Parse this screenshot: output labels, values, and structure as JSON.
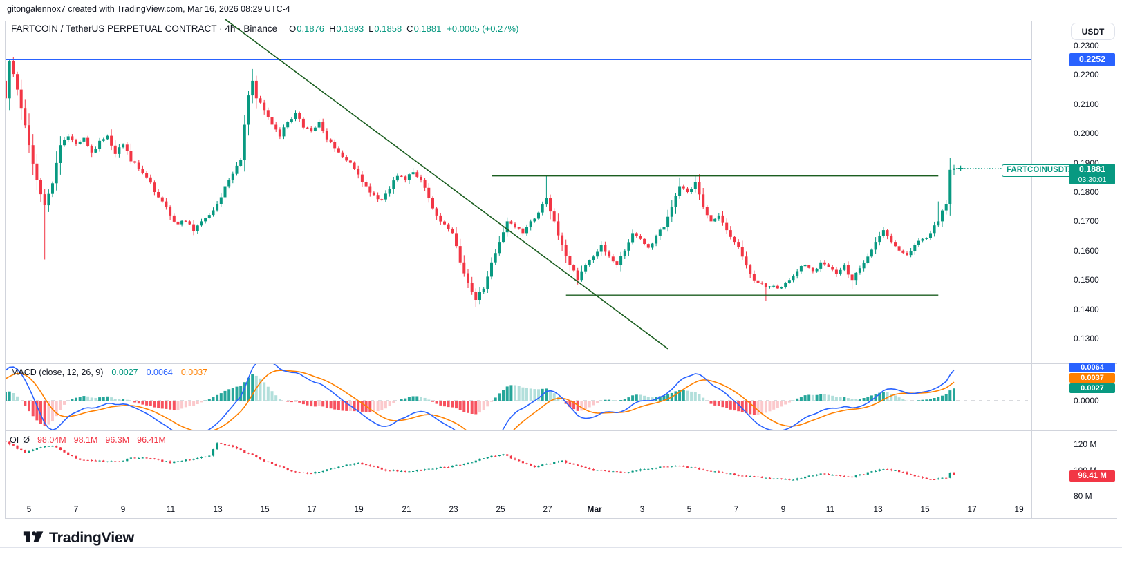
{
  "attribution": "gitongalennox7 created with TradingView.com, Mar 16, 2026 08:29 UTC-4",
  "header": {
    "title": "FARTCOIN / TetherUS PERPETUAL CONTRACT · 4h · Binance",
    "ohlc": {
      "o_label": "O",
      "o": "0.1876",
      "h_label": "H",
      "h": "0.1893",
      "l_label": "L",
      "l": "0.1858",
      "c_label": "C",
      "c": "0.1881",
      "change": "+0.0005 (+0.27%)"
    }
  },
  "indicators": {
    "macd": {
      "label": "MACD (close, 12, 26, 9)",
      "hist": "0.0027",
      "macd": "0.0064",
      "signal": "0.0037"
    },
    "oi": {
      "label": "OI",
      "avg_symbol": "Ø",
      "values": [
        "98.04M",
        "98.1M",
        "96.3M",
        "96.41M"
      ]
    }
  },
  "axis": {
    "currency_button": "USDT",
    "price_ticks": [
      "0.2300",
      "0.2200",
      "0.2100",
      "0.2000",
      "0.1900",
      "0.1800",
      "0.1700",
      "0.1600",
      "0.1500",
      "0.1400",
      "0.1300"
    ],
    "time_ticks": [
      "5",
      "7",
      "9",
      "11",
      "13",
      "15",
      "17",
      "19",
      "21",
      "23",
      "25",
      "27",
      "Mar",
      "3",
      "5",
      "7",
      "9",
      "11",
      "13",
      "15",
      "17",
      "19"
    ],
    "macd_zero_label": "0.0000",
    "oi_ticks": [
      {
        "label": "120 M",
        "value": 120
      },
      {
        "label": "100 M",
        "value": 100
      },
      {
        "label": "80 M",
        "value": 80
      }
    ]
  },
  "badges": {
    "level_price": "0.2252",
    "symbol_label": "FARTCOINUSDT.P",
    "last_price": "0.1881",
    "countdown": "03:30:01",
    "macd_line": "0.0064",
    "macd_signal": "0.0037",
    "macd_hist": "0.0027",
    "oi_value": "96.41 M"
  },
  "footer": {
    "logo_text": "TradingView"
  },
  "colors": {
    "up": "#089981",
    "down": "#f23645",
    "macd_line": "#2962ff",
    "signal_line": "#ff8000",
    "hist_grow_above": "#26a69a",
    "hist_fall_above": "#b2dfdb",
    "hist_fall_below": "#f7525f",
    "hist_grow_below": "#fbc9cc",
    "level_blue": "#2962ff",
    "drawing_green": "#1b5e20",
    "accent_teal": "#089981",
    "accent_red": "#f23645"
  },
  "chart_data": {
    "type": "candlestick",
    "symbol": "FARTCOINUSDT.P",
    "exchange": "Binance",
    "interval": "4h",
    "title": "FARTCOIN / TetherUS PERPETUAL CONTRACT",
    "last": {
      "open": 0.1876,
      "high": 0.1893,
      "low": 0.1858,
      "close": 0.1881,
      "change_abs": 0.0005,
      "change_pct": 0.27
    },
    "price_axis_range": {
      "top": 0.2386,
      "bottom": 0.1213
    },
    "levels": {
      "horizontal_blue": 0.2252,
      "range_high_green": 0.1855,
      "range_low_green": 0.1448
    },
    "trendline": {
      "from": {
        "index": 56,
        "price": 0.239
      },
      "to": {
        "index": 169,
        "price": 0.1265
      }
    },
    "range_high_span": {
      "from_index": 124,
      "to_index": 238
    },
    "range_low_span": {
      "from_index": 143,
      "to_index": 238
    },
    "candle_count": 243,
    "first_open": 0.218,
    "close_waypoints": [
      [
        0,
        0.212
      ],
      [
        1,
        0.2248
      ],
      [
        3,
        0.215
      ],
      [
        4,
        0.2085
      ],
      [
        6,
        0.196
      ],
      [
        8,
        0.184
      ],
      [
        10,
        0.1755
      ],
      [
        12,
        0.183
      ],
      [
        14,
        0.196
      ],
      [
        16,
        0.199
      ],
      [
        18,
        0.1965
      ],
      [
        20,
        0.1985
      ],
      [
        22,
        0.1935
      ],
      [
        24,
        0.1975
      ],
      [
        26,
        0.1992
      ],
      [
        28,
        0.193
      ],
      [
        30,
        0.1962
      ],
      [
        32,
        0.1905
      ],
      [
        34,
        0.188
      ],
      [
        36,
        0.185
      ],
      [
        38,
        0.18
      ],
      [
        40,
        0.1768
      ],
      [
        42,
        0.172
      ],
      [
        44,
        0.169
      ],
      [
        46,
        0.17
      ],
      [
        48,
        0.1668
      ],
      [
        50,
        0.17
      ],
      [
        52,
        0.1722
      ],
      [
        54,
        0.176
      ],
      [
        56,
        0.182
      ],
      [
        58,
        0.1862
      ],
      [
        60,
        0.191
      ],
      [
        61,
        0.203
      ],
      [
        62,
        0.213
      ],
      [
        63,
        0.218
      ],
      [
        64,
        0.212
      ],
      [
        66,
        0.208
      ],
      [
        68,
        0.203
      ],
      [
        70,
        0.199
      ],
      [
        72,
        0.204
      ],
      [
        74,
        0.207
      ],
      [
        76,
        0.202
      ],
      [
        78,
        0.201
      ],
      [
        80,
        0.204
      ],
      [
        82,
        0.198
      ],
      [
        84,
        0.195
      ],
      [
        86,
        0.192
      ],
      [
        88,
        0.19
      ],
      [
        90,
        0.186
      ],
      [
        92,
        0.182
      ],
      [
        94,
        0.179
      ],
      [
        96,
        0.1775
      ],
      [
        98,
        0.181
      ],
      [
        100,
        0.1855
      ],
      [
        102,
        0.184
      ],
      [
        104,
        0.1868
      ],
      [
        106,
        0.184
      ],
      [
        108,
        0.178
      ],
      [
        110,
        0.172
      ],
      [
        112,
        0.169
      ],
      [
        114,
        0.166
      ],
      [
        116,
        0.156
      ],
      [
        118,
        0.149
      ],
      [
        120,
        0.1432
      ],
      [
        122,
        0.147
      ],
      [
        124,
        0.156
      ],
      [
        126,
        0.163
      ],
      [
        128,
        0.17
      ],
      [
        130,
        0.168
      ],
      [
        132,
        0.166
      ],
      [
        134,
        0.17
      ],
      [
        136,
        0.173
      ],
      [
        138,
        0.178
      ],
      [
        140,
        0.17
      ],
      [
        142,
        0.162
      ],
      [
        144,
        0.155
      ],
      [
        146,
        0.15
      ],
      [
        148,
        0.155
      ],
      [
        150,
        0.158
      ],
      [
        152,
        0.162
      ],
      [
        154,
        0.158
      ],
      [
        156,
        0.155
      ],
      [
        158,
        0.16
      ],
      [
        160,
        0.166
      ],
      [
        162,
        0.164
      ],
      [
        164,
        0.161
      ],
      [
        166,
        0.165
      ],
      [
        168,
        0.168
      ],
      [
        170,
        0.175
      ],
      [
        172,
        0.182
      ],
      [
        174,
        0.18
      ],
      [
        176,
        0.1835
      ],
      [
        178,
        0.175
      ],
      [
        180,
        0.17
      ],
      [
        182,
        0.172
      ],
      [
        184,
        0.167
      ],
      [
        186,
        0.163
      ],
      [
        188,
        0.158
      ],
      [
        190,
        0.152
      ],
      [
        192,
        0.149
      ],
      [
        194,
        0.1475
      ],
      [
        196,
        0.148
      ],
      [
        198,
        0.1475
      ],
      [
        200,
        0.15
      ],
      [
        202,
        0.153
      ],
      [
        204,
        0.155
      ],
      [
        206,
        0.153
      ],
      [
        208,
        0.156
      ],
      [
        210,
        0.1545
      ],
      [
        212,
        0.152
      ],
      [
        214,
        0.155
      ],
      [
        216,
        0.15
      ],
      [
        218,
        0.154
      ],
      [
        220,
        0.158
      ],
      [
        222,
        0.163
      ],
      [
        224,
        0.167
      ],
      [
        226,
        0.163
      ],
      [
        228,
        0.16
      ],
      [
        230,
        0.1585
      ],
      [
        232,
        0.162
      ],
      [
        234,
        0.164
      ],
      [
        236,
        0.166
      ],
      [
        238,
        0.17
      ],
      [
        240,
        0.176
      ],
      [
        241,
        0.1876
      ],
      [
        242,
        0.1881
      ]
    ],
    "wick_overrides": {
      "1": {
        "h": 0.2252
      },
      "10": {
        "l": 0.157
      },
      "63": {
        "h": 0.222
      },
      "104": {
        "h": 0.1882
      },
      "120": {
        "l": 0.1408
      },
      "138": {
        "h": 0.1856
      },
      "172": {
        "h": 0.185
      },
      "176": {
        "h": 0.1856
      },
      "194": {
        "l": 0.1428
      },
      "216": {
        "l": 0.1468
      },
      "238": {
        "h": 0.1768
      },
      "242": {
        "h": 0.1893,
        "l": 0.1858
      }
    },
    "macd": {
      "source": "close",
      "fast": 12,
      "slow": 26,
      "signal": 9,
      "last_hist": 0.0027,
      "last_macd": 0.0064,
      "last_signal": 0.0037
    },
    "oi": {
      "unit": "M",
      "last": {
        "open": 98.04,
        "high": 98.1,
        "low": 96.3,
        "close": 96.41
      },
      "axis_ticks": [
        120,
        100,
        80
      ],
      "waypoints": [
        [
          0,
          122.0
        ],
        [
          5,
          113.5
        ],
        [
          8,
          117.0
        ],
        [
          12,
          119.0
        ],
        [
          18,
          108.7
        ],
        [
          24,
          107.0
        ],
        [
          30,
          107.2
        ],
        [
          32,
          110.0
        ],
        [
          38,
          108.4
        ],
        [
          42,
          106.0
        ],
        [
          48,
          108.4
        ],
        [
          52,
          111.5
        ],
        [
          54,
          121.0
        ],
        [
          57,
          119.0
        ],
        [
          60,
          115.0
        ],
        [
          62,
          113.0
        ],
        [
          66,
          107.0
        ],
        [
          72,
          100.0
        ],
        [
          77,
          97.3
        ],
        [
          80,
          98.9
        ],
        [
          87,
          104.3
        ],
        [
          90,
          105.3
        ],
        [
          97,
          100.0
        ],
        [
          102,
          98.9
        ],
        [
          108,
          101.0
        ],
        [
          113,
          102.7
        ],
        [
          118,
          105.3
        ],
        [
          122,
          109.6
        ],
        [
          127,
          112.3
        ],
        [
          132,
          105.3
        ],
        [
          135,
          102.7
        ],
        [
          139,
          105.3
        ],
        [
          142,
          107.0
        ],
        [
          150,
          100.0
        ],
        [
          158,
          98.4
        ],
        [
          168,
          102.7
        ],
        [
          172,
          103.5
        ],
        [
          180,
          99.0
        ],
        [
          190,
          95.0
        ],
        [
          200,
          92.3
        ],
        [
          208,
          97.3
        ],
        [
          216,
          94.7
        ],
        [
          224,
          101.0
        ],
        [
          228,
          99.0
        ],
        [
          236,
          92.3
        ],
        [
          240,
          94.0
        ],
        [
          241,
          98.04
        ],
        [
          242,
          96.41
        ]
      ]
    }
  }
}
